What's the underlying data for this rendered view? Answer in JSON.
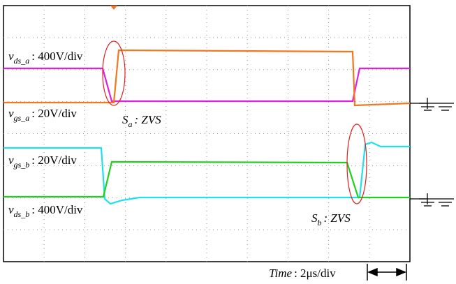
{
  "labels": [
    {
      "symbol": "v",
      "subscript": "ds_a",
      "text": ": 400V/div"
    },
    {
      "symbol": "v",
      "subscript": "gs_a",
      "text": ": 20V/div"
    },
    {
      "symbol": "S",
      "subscript": "a",
      "text": ": ZVS"
    },
    {
      "symbol": "v",
      "subscript": "gs_b",
      "text": ": 20V/div"
    },
    {
      "symbol": "v",
      "subscript": "ds_b",
      "text": ": 400V/div"
    },
    {
      "symbol": "S",
      "subscript": "b",
      "text": ": ZVS"
    }
  ],
  "time_scale": {
    "symbol": "Time",
    "text": ": 2μs/div"
  }
}
